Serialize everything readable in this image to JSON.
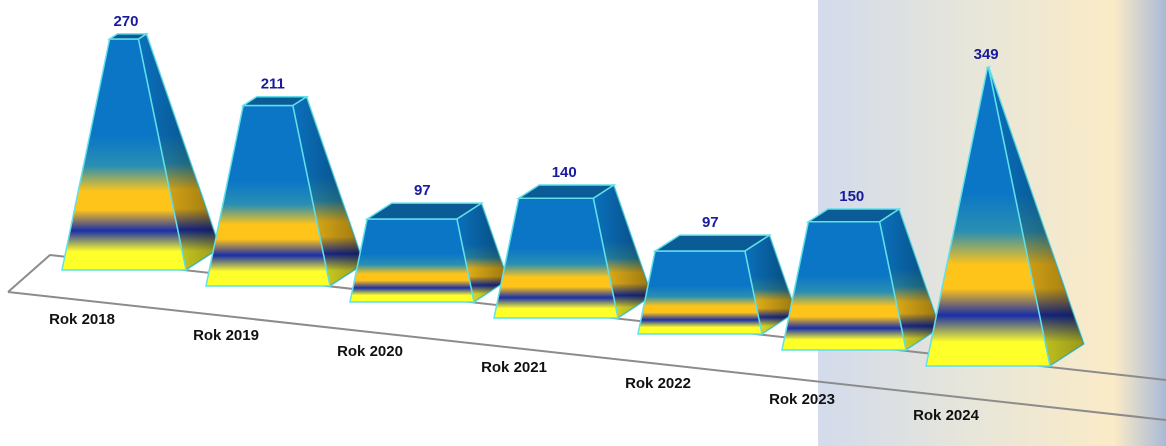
{
  "chart_data": {
    "type": "bar",
    "style": "3d-pyramid",
    "categories": [
      "Rok 2018",
      "Rok 2019",
      "Rok 2020",
      "Rok 2021",
      "Rok 2022",
      "Rok 2023",
      "Rok 2024"
    ],
    "values": [
      270,
      211,
      97,
      140,
      97,
      150,
      349
    ],
    "highlighted_categories": [
      "Rok 2023",
      "Rok 2024"
    ],
    "title": "",
    "xlabel": "",
    "ylabel": "",
    "ylim": [
      0,
      400
    ],
    "grid": false,
    "legend": "none"
  },
  "colors": {
    "bar_gradient": [
      "#0b76c6",
      "#2a8fb2",
      "#ffc41a",
      "#1a2fa8",
      "#ffff2a"
    ],
    "bar_outline": "#5fe0ea",
    "value_label": "#1a1a9c",
    "category_label": "#111111",
    "floor_line": "#8c8c8c"
  }
}
